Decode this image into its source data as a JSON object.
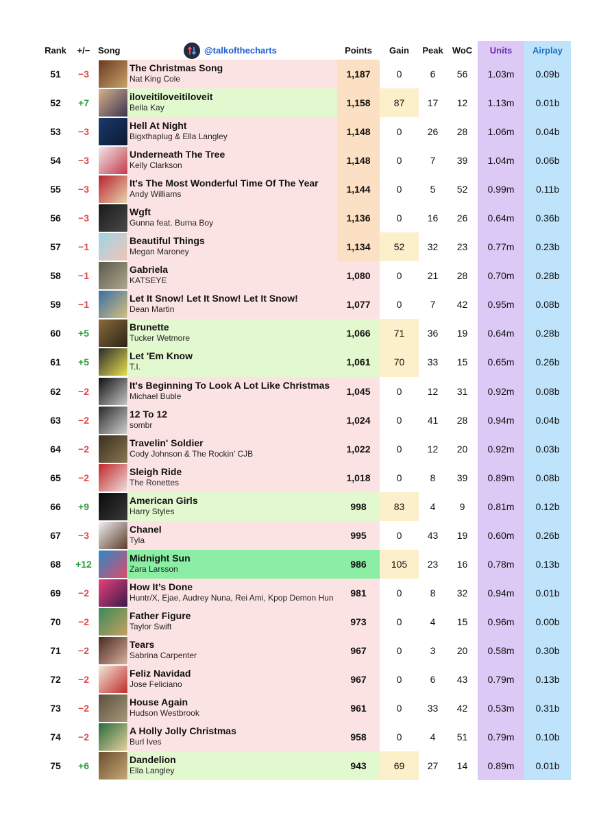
{
  "header": {
    "rank": "Rank",
    "change": "+/−",
    "song": "Song",
    "handle": "@talkofthecharts",
    "points": "Points",
    "gain": "Gain",
    "peak": "Peak",
    "woc": "WoC",
    "units": "Units",
    "airplay": "Airplay"
  },
  "colors": {
    "row_decline": "#fce3e3",
    "row_gain": "#e2f8cf",
    "row_biggest_gain": "#8aeea4",
    "points_highlight": "#fce0c4",
    "gain_highlight": "#fbf0c9",
    "units_column": "#dcc9f6",
    "airplay_column": "#bfe3fb",
    "up": "#2e9e3e",
    "down": "#e04848"
  },
  "rows": [
    {
      "rank": "51",
      "change": "−3",
      "title": "The Christmas Song",
      "artist": "Nat King Cole",
      "points": "1,187",
      "gain": "0",
      "peak": "6",
      "woc": "56",
      "units": "1.03m",
      "airplay": "0.09b",
      "art": [
        "#6b3a1f",
        "#c9a36a"
      ]
    },
    {
      "rank": "52",
      "change": "+7",
      "title": "iloveitiloveitiloveit",
      "artist": "Bella Kay",
      "points": "1,158",
      "gain": "87",
      "peak": "17",
      "woc": "12",
      "units": "1.13m",
      "airplay": "0.01b",
      "art": [
        "#d9b08a",
        "#3a3552"
      ]
    },
    {
      "rank": "53",
      "change": "−3",
      "title": "Hell At Night",
      "artist": "Bigxthaplug & Ella Langley",
      "points": "1,148",
      "gain": "0",
      "peak": "26",
      "woc": "28",
      "units": "1.06m",
      "airplay": "0.04b",
      "art": [
        "#1b3a6e",
        "#0c1830"
      ]
    },
    {
      "rank": "54",
      "change": "−3",
      "title": "Underneath The Tree",
      "artist": "Kelly Clarkson",
      "points": "1,148",
      "gain": "0",
      "peak": "7",
      "woc": "39",
      "units": "1.04m",
      "airplay": "0.06b",
      "art": [
        "#f2e8ea",
        "#c23a4a"
      ]
    },
    {
      "rank": "55",
      "change": "−3",
      "title": "It's The Most Wonderful Time Of The Year",
      "artist": "Andy Williams",
      "points": "1,144",
      "gain": "0",
      "peak": "5",
      "woc": "52",
      "units": "0.99m",
      "airplay": "0.11b",
      "art": [
        "#b8222e",
        "#e8d6b0"
      ]
    },
    {
      "rank": "56",
      "change": "−3",
      "title": "Wgft",
      "artist": "Gunna feat. Burna Boy",
      "points": "1,136",
      "gain": "0",
      "peak": "16",
      "woc": "26",
      "units": "0.64m",
      "airplay": "0.36b",
      "art": [
        "#1a1a1a",
        "#4a4a4a"
      ]
    },
    {
      "rank": "57",
      "change": "−1",
      "title": "Beautiful Things",
      "artist": "Megan Maroney",
      "points": "1,134",
      "gain": "52",
      "peak": "32",
      "woc": "23",
      "units": "0.77m",
      "airplay": "0.23b",
      "art": [
        "#9fd3e6",
        "#f0c6b4"
      ]
    },
    {
      "rank": "58",
      "change": "−1",
      "title": "Gabriela",
      "artist": "KATSEYE",
      "points": "1,080",
      "gain": "0",
      "peak": "21",
      "woc": "28",
      "units": "0.70m",
      "airplay": "0.28b",
      "art": [
        "#5a5a4a",
        "#b0a890"
      ]
    },
    {
      "rank": "59",
      "change": "−1",
      "title": "Let It Snow! Let It Snow! Let It Snow!",
      "artist": "Dean Martin",
      "points": "1,077",
      "gain": "0",
      "peak": "7",
      "woc": "42",
      "units": "0.95m",
      "airplay": "0.08b",
      "art": [
        "#3a6ea8",
        "#d8c07a"
      ]
    },
    {
      "rank": "60",
      "change": "+5",
      "title": "Brunette",
      "artist": "Tucker Wetmore",
      "points": "1,066",
      "gain": "71",
      "peak": "36",
      "woc": "19",
      "units": "0.64m",
      "airplay": "0.28b",
      "art": [
        "#8a6a3a",
        "#2a2418"
      ]
    },
    {
      "rank": "61",
      "change": "+5",
      "title": "Let 'Em Know",
      "artist": "T.I.",
      "points": "1,061",
      "gain": "70",
      "peak": "33",
      "woc": "15",
      "units": "0.65m",
      "airplay": "0.26b",
      "art": [
        "#2a2a2a",
        "#e8e050"
      ]
    },
    {
      "rank": "62",
      "change": "−2",
      "title": "It's Beginning To Look A Lot Like Christmas",
      "artist": "Michael Buble",
      "points": "1,045",
      "gain": "0",
      "peak": "12",
      "woc": "31",
      "units": "0.92m",
      "airplay": "0.08b",
      "art": [
        "#101010",
        "#c8c8c8"
      ]
    },
    {
      "rank": "63",
      "change": "−2",
      "title": "12 To 12",
      "artist": "sombr",
      "points": "1,024",
      "gain": "0",
      "peak": "41",
      "woc": "28",
      "units": "0.94m",
      "airplay": "0.04b",
      "art": [
        "#2a2a2a",
        "#d0d0d0"
      ]
    },
    {
      "rank": "64",
      "change": "−2",
      "title": "Travelin' Soldier",
      "artist": "Cody Johnson & The Rockin' CJB",
      "points": "1,022",
      "gain": "0",
      "peak": "12",
      "woc": "20",
      "units": "0.92m",
      "airplay": "0.03b",
      "art": [
        "#3a3020",
        "#8a7650"
      ]
    },
    {
      "rank": "65",
      "change": "−2",
      "title": "Sleigh Ride",
      "artist": "The Ronettes",
      "points": "1,018",
      "gain": "0",
      "peak": "8",
      "woc": "39",
      "units": "0.89m",
      "airplay": "0.08b",
      "art": [
        "#c02828",
        "#f0e0e0"
      ]
    },
    {
      "rank": "66",
      "change": "+9",
      "title": "American Girls",
      "artist": "Harry Styles",
      "points": "998",
      "gain": "83",
      "peak": "4",
      "woc": "9",
      "units": "0.81m",
      "airplay": "0.12b",
      "art": [
        "#0a0a0a",
        "#3a3a3a"
      ]
    },
    {
      "rank": "67",
      "change": "−3",
      "title": "Chanel",
      "artist": "Tyla",
      "points": "995",
      "gain": "0",
      "peak": "43",
      "woc": "19",
      "units": "0.60m",
      "airplay": "0.26b",
      "art": [
        "#f0f0f0",
        "#5a3a2a"
      ]
    },
    {
      "rank": "68",
      "change": "+12",
      "title": "Midnight Sun",
      "artist": "Zara Larsson",
      "points": "986",
      "gain": "105",
      "peak": "23",
      "woc": "16",
      "units": "0.78m",
      "airplay": "0.13b",
      "art": [
        "#2a8ac8",
        "#e04a6a"
      ]
    },
    {
      "rank": "69",
      "change": "−2",
      "title": "How It’s Done",
      "artist": "Huntr/X, Ejae, Audrey Nuna, Rei Ami, Kpop Demon Hun",
      "points": "981",
      "gain": "0",
      "peak": "8",
      "woc": "32",
      "units": "0.94m",
      "airplay": "0.01b",
      "art": [
        "#e8407a",
        "#3a1a4a"
      ]
    },
    {
      "rank": "70",
      "change": "−2",
      "title": "Father Figure",
      "artist": "Taylor Swift",
      "points": "973",
      "gain": "0",
      "peak": "4",
      "woc": "15",
      "units": "0.96m",
      "airplay": "0.00b",
      "art": [
        "#3a8a5a",
        "#c8a060"
      ]
    },
    {
      "rank": "71",
      "change": "−2",
      "title": "Tears",
      "artist": "Sabrina Carpenter",
      "points": "967",
      "gain": "0",
      "peak": "3",
      "woc": "20",
      "units": "0.58m",
      "airplay": "0.30b",
      "art": [
        "#4a2a20",
        "#d8b0a0"
      ]
    },
    {
      "rank": "72",
      "change": "−2",
      "title": "Feliz Navidad",
      "artist": "Jose Feliciano",
      "points": "967",
      "gain": "0",
      "peak": "6",
      "woc": "43",
      "units": "0.79m",
      "airplay": "0.13b",
      "art": [
        "#f0e8d8",
        "#c02a2a"
      ]
    },
    {
      "rank": "73",
      "change": "−2",
      "title": "House Again",
      "artist": "Hudson Westbrook",
      "points": "961",
      "gain": "0",
      "peak": "33",
      "woc": "42",
      "units": "0.53m",
      "airplay": "0.31b",
      "art": [
        "#5a5040",
        "#a89878"
      ]
    },
    {
      "rank": "74",
      "change": "−2",
      "title": "A Holly Jolly Christmas",
      "artist": "Burl Ives",
      "points": "958",
      "gain": "0",
      "peak": "4",
      "woc": "51",
      "units": "0.79m",
      "airplay": "0.10b",
      "art": [
        "#2a6a3a",
        "#e8d0a0"
      ]
    },
    {
      "rank": "75",
      "change": "+6",
      "title": "Dandelion",
      "artist": "Ella Langley",
      "points": "943",
      "gain": "69",
      "peak": "27",
      "woc": "14",
      "units": "0.89m",
      "airplay": "0.01b",
      "art": [
        "#6a5030",
        "#c8a878"
      ]
    }
  ]
}
